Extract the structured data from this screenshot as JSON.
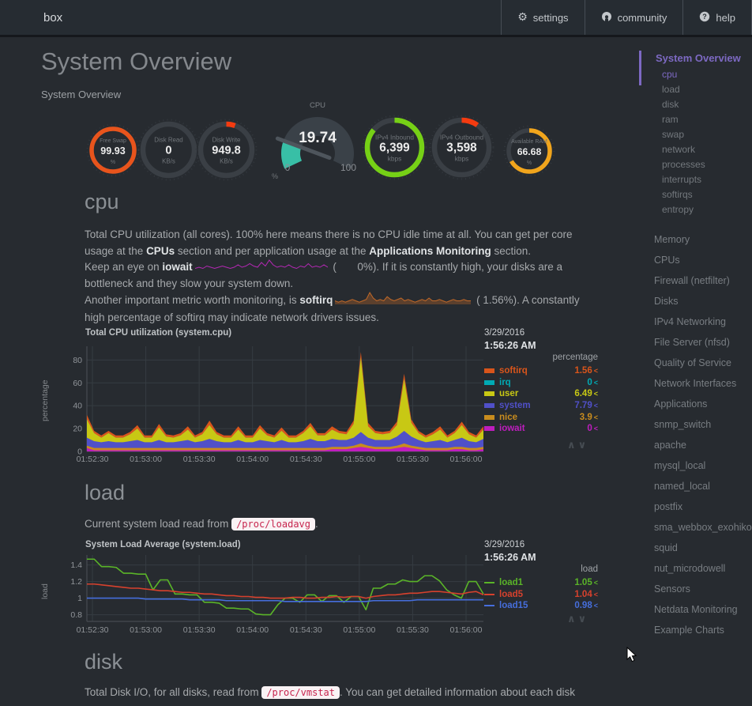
{
  "navbar": {
    "brand": "box",
    "buttons": [
      {
        "label": "settings",
        "icon": "gear-icon"
      },
      {
        "label": "community",
        "icon": "github-icon"
      },
      {
        "label": "help",
        "icon": "question-icon"
      }
    ]
  },
  "header": {
    "title": "System Overview",
    "subtitle": "System Overview"
  },
  "gauges": [
    {
      "title": "Free Swap",
      "value": "99.93",
      "unit": "%",
      "color": "#e8541c",
      "fill": 0.9993
    },
    {
      "title": "Disk Read",
      "value": "0",
      "unit": "KB/s",
      "color": "#e8541c",
      "fill": 0
    },
    {
      "title": "Disk Write",
      "value": "949.8",
      "unit": "KB/s",
      "color": "#f43b10",
      "fill": 0.055
    },
    {
      "title": "IPv4 Inbound",
      "value": "6,399",
      "unit": "kbps",
      "color": "#76d016",
      "fill": 0.86
    },
    {
      "title": "IPv4 Outbound",
      "value": "3,598",
      "unit": "kbps",
      "color": "#f43b10",
      "fill": 0.097
    },
    {
      "title": "Available RAM",
      "value": "66.68",
      "unit": "%",
      "color": "#f1a51c",
      "fill": 0.6668
    }
  ],
  "cpu_gauge": {
    "title": "CPU",
    "value": "19.74",
    "min": "0",
    "max": "100",
    "unit": "%",
    "fill": 0.1974,
    "color": "#38bfa6",
    "track_color": "#3a4148"
  },
  "sections": {
    "cpu": {
      "heading": "cpu"
    },
    "load": {
      "heading": "load"
    },
    "disk": {
      "heading": "disk"
    }
  },
  "cpu_text": {
    "p1_a": "Total CPU utilization (all cores). 100% here means there is no CPU idle time at all. You can get per core usage at the ",
    "p1_b": "CPUs",
    "p1_c": " section and per application usage at the ",
    "p1_d": "Applications Monitoring",
    "p1_e": " section.",
    "p2_a": "Keep an eye on ",
    "p2_b": "iowait",
    "p2_c": " (",
    "p2_val": "0%",
    "p2_e": "). If it is constantly high, your disks are a bottleneck and they slow your system down.",
    "p3_a": "Another important metric worth monitoring, is ",
    "p3_b": "softirq",
    "p3_c": " (",
    "p3_val": "1.56%",
    "p3_e": "). A constantly high percentage of softirq may indicate network drivers issues.",
    "iowait_spark_color": "#b428b4",
    "softirq_spark_color": "#c06828",
    "iowait_spark": [
      1,
      2,
      1,
      3,
      2,
      1,
      2,
      3,
      2,
      1,
      2,
      4,
      2,
      3,
      5,
      3,
      2,
      6,
      3,
      8,
      4,
      2,
      3,
      2,
      4,
      2,
      1,
      3,
      2,
      5,
      2,
      3,
      2,
      4,
      2
    ],
    "softirq_spark": [
      2,
      1,
      2,
      1,
      2,
      3,
      2,
      1,
      2,
      3,
      8,
      4,
      2,
      3,
      2,
      5,
      3,
      2,
      3,
      4,
      2,
      3,
      2,
      1,
      2,
      3,
      2,
      4,
      2,
      2,
      3,
      2,
      1,
      2,
      3,
      2,
      2,
      3,
      2,
      2
    ]
  },
  "load_text": {
    "a": "Current system load read from ",
    "code": "/proc/loadavg",
    "b": "."
  },
  "disk_text": {
    "a": "Total Disk I/O, for all disks, read from ",
    "code": "/proc/vmstat",
    "b": ". You can get detailed information about each disk"
  },
  "chart_toolbox": {
    "collapse": "∧",
    "expand": "∨"
  },
  "legend_toggle": "<",
  "chart_data": [
    {
      "id": "cpu",
      "type": "area",
      "stacked": true,
      "title": "Total CPU utilization (system.cpu)",
      "units": "percentage",
      "ylabel": "percentage",
      "date": "3/29/2016",
      "time": "1:56:26 AM",
      "x_ticks": [
        "01:52:30",
        "01:53:00",
        "01:53:30",
        "01:54:00",
        "01:54:30",
        "01:55:00",
        "01:55:30",
        "01:56:00"
      ],
      "y_ticks": {
        "values": [
          80,
          60,
          40,
          20,
          0
        ],
        "labels": [
          "80",
          "60",
          "40",
          "20",
          "0"
        ]
      },
      "ylim": [
        0,
        92
      ],
      "stack_order": [
        "iowait",
        "nice",
        "system",
        "user",
        "irq",
        "softirq"
      ],
      "series": [
        {
          "name": "softirq",
          "color": "#d9551b",
          "value": "1.56",
          "data": [
            4,
            2,
            2,
            2,
            2,
            2,
            2,
            3,
            2,
            2,
            3,
            2,
            2,
            2,
            3,
            2,
            2,
            4,
            2,
            2,
            2,
            3,
            2,
            2,
            3,
            2,
            2,
            3,
            2,
            2,
            2,
            3,
            2,
            2,
            3,
            2,
            2,
            3,
            5,
            3,
            2,
            2,
            2,
            3,
            5,
            3,
            2,
            2,
            2,
            3,
            2,
            2,
            3,
            2,
            2,
            3
          ]
        },
        {
          "name": "irq",
          "color": "#00aab4",
          "value": "0",
          "data": [
            0,
            0,
            0,
            0,
            0,
            0,
            0,
            0,
            0,
            0,
            0,
            0,
            0,
            0,
            0,
            0,
            0,
            0,
            0,
            0,
            0,
            0,
            0,
            0,
            0,
            0,
            0,
            0,
            0,
            0,
            0,
            0,
            0,
            0,
            0,
            0,
            0,
            0,
            0,
            0,
            0,
            0,
            0,
            0,
            0,
            0,
            0,
            0,
            0,
            0,
            0,
            0,
            0,
            0,
            0,
            0
          ]
        },
        {
          "name": "user",
          "color": "#c8c814",
          "value": "6.49",
          "data": [
            16,
            7,
            4,
            7,
            4,
            4,
            6,
            10,
            4,
            4,
            11,
            5,
            4,
            5,
            9,
            4,
            6,
            12,
            6,
            4,
            4,
            9,
            4,
            4,
            10,
            5,
            4,
            8,
            4,
            4,
            7,
            11,
            5,
            5,
            8,
            6,
            5,
            12,
            65,
            10,
            6,
            5,
            6,
            10,
            45,
            12,
            6,
            4,
            6,
            9,
            4,
            6,
            11,
            6,
            4,
            8
          ]
        },
        {
          "name": "system",
          "color": "#5050c8",
          "value": "7.79",
          "data": [
            7,
            6,
            5,
            6,
            5,
            5,
            6,
            7,
            5,
            5,
            7,
            5,
            5,
            6,
            7,
            5,
            6,
            8,
            6,
            5,
            5,
            7,
            5,
            5,
            7,
            6,
            5,
            7,
            5,
            5,
            6,
            8,
            6,
            6,
            7,
            6,
            6,
            7,
            10,
            7,
            6,
            6,
            6,
            8,
            11,
            8,
            6,
            5,
            6,
            7,
            5,
            6,
            8,
            6,
            5,
            7
          ]
        },
        {
          "name": "nice",
          "color": "#c88c1e",
          "value": "3.9",
          "data": [
            2,
            2,
            2,
            2,
            2,
            2,
            2,
            2,
            2,
            2,
            2,
            2,
            2,
            2,
            2,
            2,
            2,
            2,
            2,
            2,
            2,
            2,
            2,
            2,
            2,
            2,
            2,
            2,
            2,
            2,
            2,
            2,
            2,
            2,
            2,
            2,
            2,
            2,
            3,
            2,
            2,
            2,
            2,
            2,
            3,
            2,
            2,
            2,
            2,
            2,
            2,
            2,
            2,
            2,
            2,
            2
          ]
        },
        {
          "name": "iowait",
          "color": "#be1ebe",
          "value": "0",
          "data": [
            3,
            1,
            1,
            1,
            1,
            1,
            1,
            1,
            1,
            1,
            1,
            1,
            1,
            1,
            1,
            1,
            1,
            1,
            1,
            1,
            1,
            1,
            1,
            1,
            1,
            1,
            1,
            1,
            1,
            1,
            1,
            1,
            1,
            1,
            2,
            2,
            2,
            3,
            4,
            3,
            2,
            2,
            2,
            3,
            4,
            3,
            2,
            1,
            1,
            1,
            1,
            2,
            2,
            1,
            1,
            2
          ]
        }
      ]
    },
    {
      "id": "load",
      "type": "line",
      "stacked": false,
      "title": "System Load Average (system.load)",
      "units": "load",
      "ylabel": "load",
      "date": "3/29/2016",
      "time": "1:56:26 AM",
      "x_ticks": [
        "01:52:30",
        "01:53:00",
        "01:53:30",
        "01:54:00",
        "01:54:30",
        "01:55:00",
        "01:55:30",
        "01:56:00"
      ],
      "y_ticks": {
        "values": [
          1.4,
          1.2,
          1,
          0.8
        ],
        "labels": [
          "1.4",
          "1.2",
          "1",
          "0.8"
        ]
      },
      "ylim": [
        0.72,
        1.52
      ],
      "series": [
        {
          "name": "load1",
          "color": "#5ab428",
          "value": "1.05",
          "data": [
            1.47,
            1.47,
            1.38,
            1.38,
            1.37,
            1.3,
            1.3,
            1.29,
            1.29,
            1.1,
            1.22,
            1.22,
            1.05,
            1.05,
            1.04,
            1.04,
            0.95,
            0.95,
            0.94,
            0.88,
            0.88,
            0.87,
            0.87,
            0.81,
            0.8,
            0.8,
            0.92,
            1.0,
            1.0,
            0.95,
            1.04,
            1.04,
            0.96,
            1.03,
            1.03,
            0.95,
            1.02,
            1.02,
            0.86,
            1.12,
            1.12,
            1.17,
            1.17,
            1.22,
            1.2,
            1.2,
            1.27,
            1.27,
            1.21,
            1.1,
            1.04,
            1.0,
            1.2,
            1.2,
            1.05
          ]
        },
        {
          "name": "load5",
          "color": "#d7412d",
          "value": "1.04",
          "data": [
            1.17,
            1.17,
            1.16,
            1.15,
            1.14,
            1.13,
            1.12,
            1.12,
            1.11,
            1.1,
            1.09,
            1.09,
            1.08,
            1.07,
            1.07,
            1.06,
            1.05,
            1.05,
            1.04,
            1.03,
            1.03,
            1.02,
            1.02,
            1.01,
            1.01,
            1.0,
            1.0,
            1.0,
            1.01,
            1.01,
            1.0,
            1.0,
            1.01,
            1.01,
            1.02,
            1.01,
            1.02,
            1.02,
            1.0,
            1.02,
            1.03,
            1.04,
            1.04,
            1.05,
            1.06,
            1.06,
            1.07,
            1.08,
            1.08,
            1.07,
            1.06,
            1.05,
            1.07,
            1.08,
            1.04
          ]
        },
        {
          "name": "load15",
          "color": "#466edc",
          "value": "0.98",
          "data": [
            1.0,
            1.0,
            1.0,
            1.0,
            1.0,
            1.0,
            1.0,
            1.0,
            0.99,
            0.99,
            0.99,
            0.99,
            0.99,
            0.99,
            0.98,
            0.98,
            0.98,
            0.98,
            0.98,
            0.97,
            0.97,
            0.97,
            0.97,
            0.97,
            0.97,
            0.97,
            0.97,
            0.96,
            0.96,
            0.96,
            0.96,
            0.96,
            0.96,
            0.96,
            0.96,
            0.96,
            0.96,
            0.96,
            0.96,
            0.97,
            0.97,
            0.97,
            0.97,
            0.97,
            0.97,
            0.98,
            0.98,
            0.98,
            0.98,
            0.98,
            0.98,
            0.98,
            0.98,
            0.98,
            0.98
          ]
        }
      ]
    }
  ],
  "sidebar": {
    "title": "System Overview",
    "accent": "#7d69c3",
    "sub_items": [
      {
        "label": "cpu",
        "active": true
      },
      {
        "label": "load",
        "active": false
      },
      {
        "label": "disk",
        "active": false
      },
      {
        "label": "ram",
        "active": false
      },
      {
        "label": "swap",
        "active": false
      },
      {
        "label": "network",
        "active": false
      },
      {
        "label": "processes",
        "active": false
      },
      {
        "label": "interrupts",
        "active": false
      },
      {
        "label": "softirqs",
        "active": false
      },
      {
        "label": "entropy",
        "active": false
      }
    ],
    "sections": [
      "Memory",
      "CPUs",
      "Firewall (netfilter)",
      "Disks",
      "IPv4 Networking",
      "File Server (nfsd)",
      "Quality of Service",
      "Network Interfaces",
      "Applications",
      "snmp_switch",
      "apache",
      "mysql_local",
      "named_local",
      "postfix",
      "sma_webbox_exohiko",
      "squid",
      "nut_microdowell",
      "Sensors",
      "Netdata Monitoring",
      "Example Charts"
    ]
  }
}
